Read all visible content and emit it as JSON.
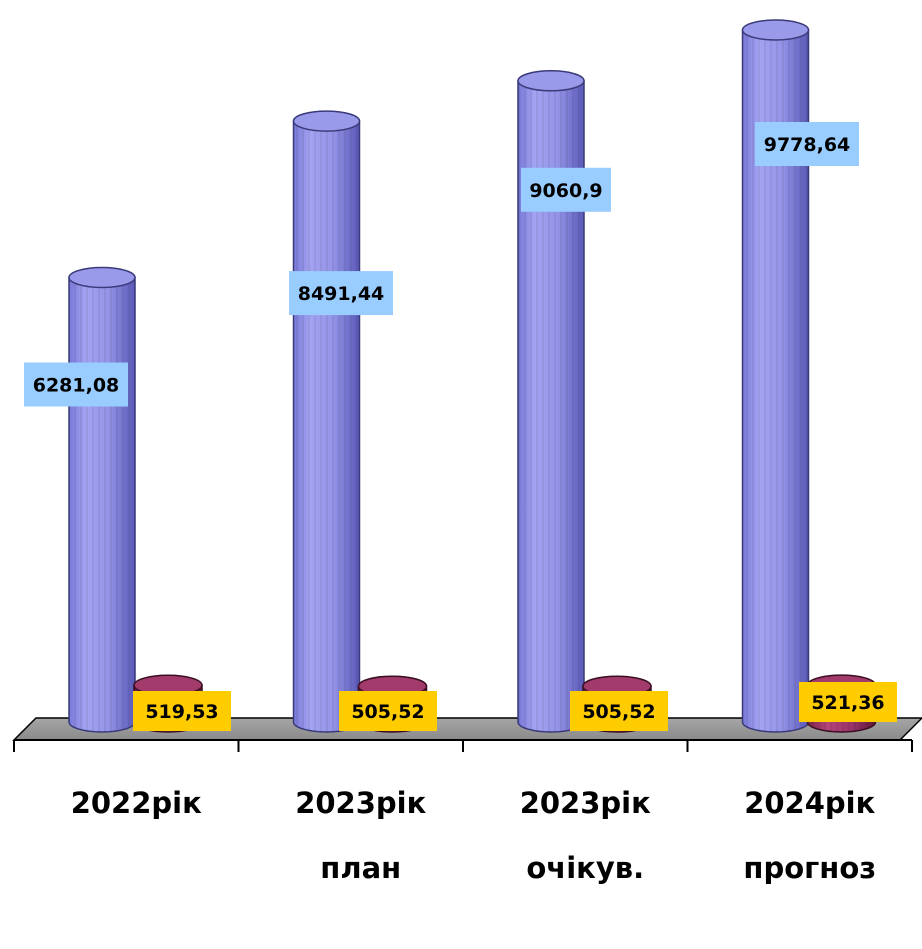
{
  "chart_data": {
    "type": "bar",
    "style": "3d-cylinder",
    "categories": [
      [
        "2022рік"
      ],
      [
        "2023рік",
        "план"
      ],
      [
        "2023рік",
        "очікув."
      ],
      [
        "2024рік",
        "прогноз"
      ]
    ],
    "series": [
      {
        "values": [
          6281.08,
          8491.44,
          9060.9,
          9778.64
        ],
        "labels": [
          "6281,08",
          "8491,44",
          "9060,9",
          "9778,64"
        ],
        "color": "#9999ee",
        "label_bg": "#99ccff"
      },
      {
        "values": [
          519.53,
          505.52,
          505.52,
          521.36
        ],
        "labels": [
          "519,53",
          "505,52",
          "505,52",
          "521,36"
        ],
        "color": "#993366",
        "label_bg": "#ffcc00"
      }
    ],
    "ylim": [
      0,
      11000
    ],
    "grid": false,
    "legend": "none"
  }
}
